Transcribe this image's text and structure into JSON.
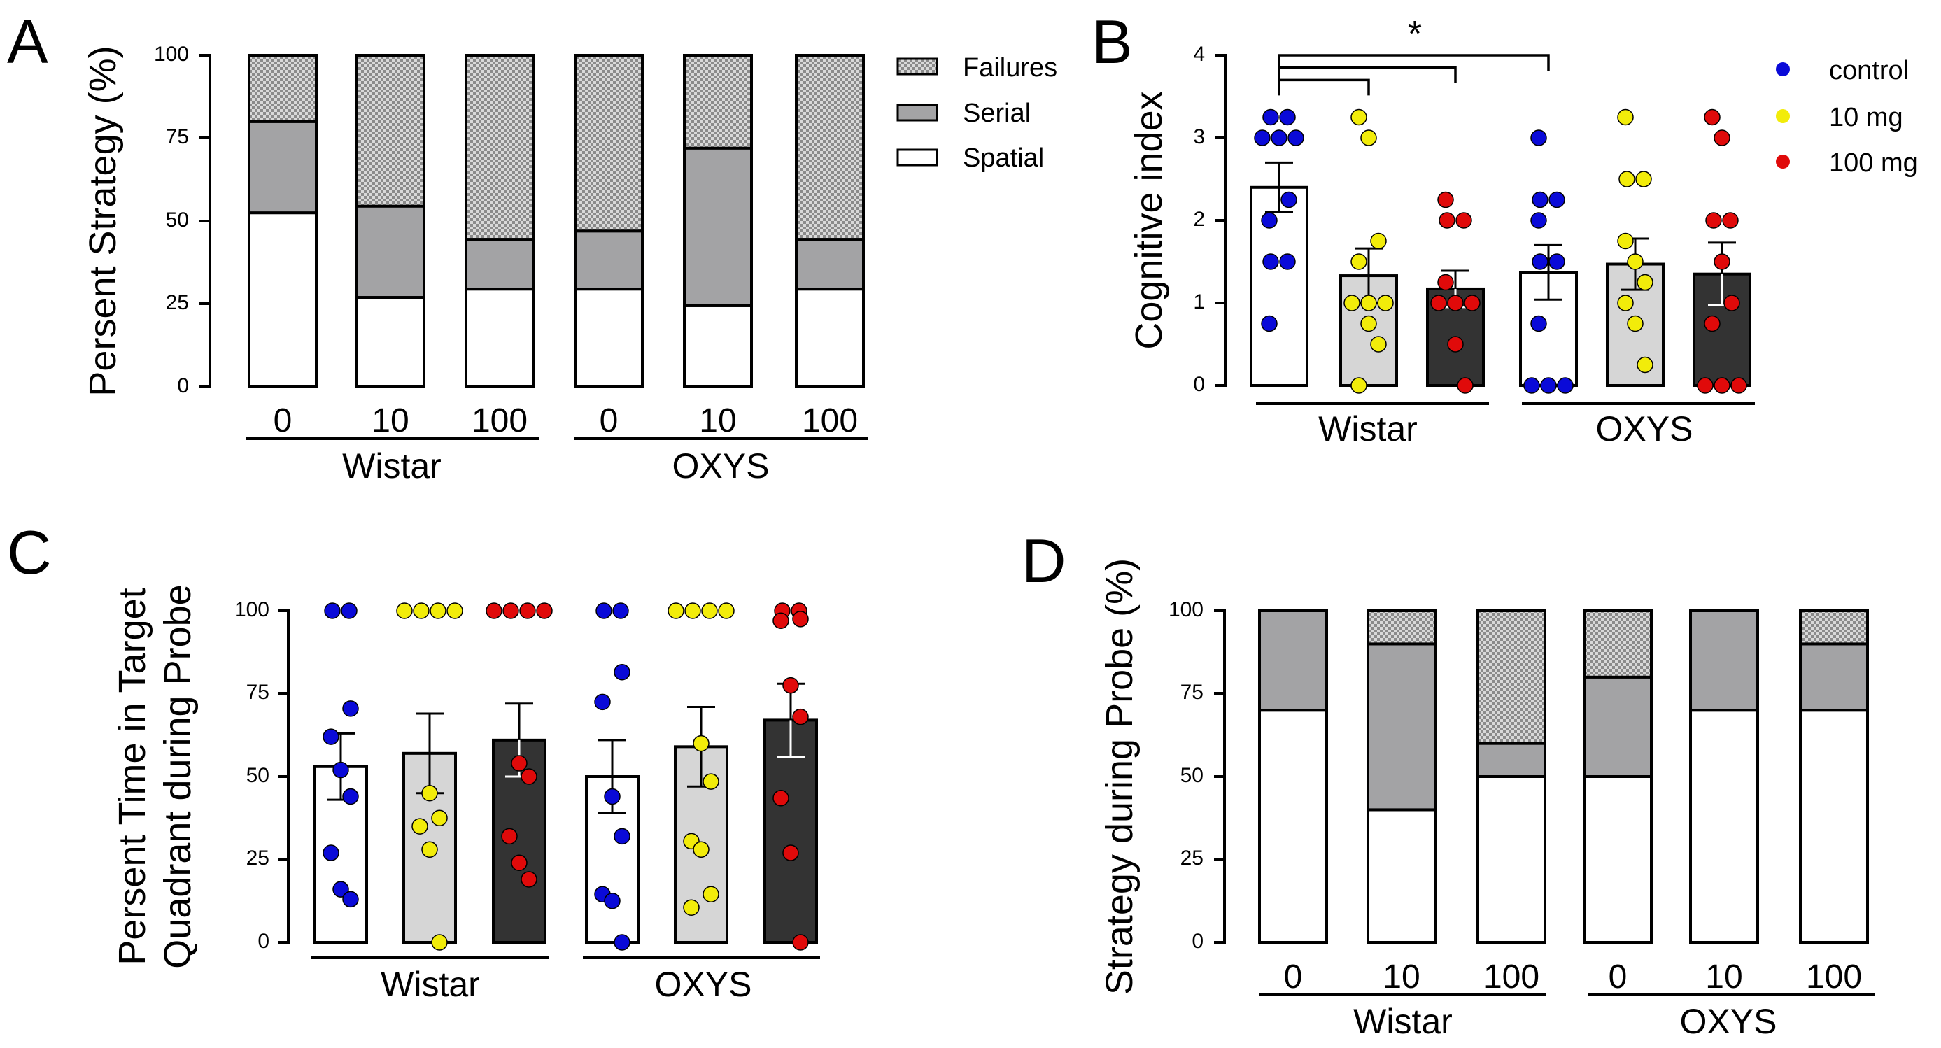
{
  "colors": {
    "failures_fill": "#d4d4d4",
    "serial_fill": "#a3a3a5",
    "spatial_fill": "#ffffff",
    "control": "#0a0ad8",
    "mg10": "#f2ec0a",
    "mg100": "#e00a0a",
    "bar_control": "#ffffff",
    "bar_10": "#d6d6d6",
    "bar_100": "#333333"
  },
  "chart_data": [
    {
      "id": "A",
      "panel": "A",
      "type": "bar",
      "stacked": true,
      "ylabel": "Persent Strategy (%)",
      "ylim": [
        0,
        100
      ],
      "yticks": [
        "0",
        "25",
        "50",
        "75",
        "100"
      ],
      "categories": [
        "0",
        "10",
        "100",
        "0",
        "10",
        "100"
      ],
      "groups": [
        "Wistar",
        "OXYS"
      ],
      "series": [
        {
          "name": "Spatial",
          "values": [
            52.5,
            27,
            29.5,
            29.5,
            24.5,
            29.5
          ]
        },
        {
          "name": "Serial",
          "values": [
            27.5,
            27.5,
            15,
            17.5,
            47.5,
            15
          ]
        },
        {
          "name": "Failures",
          "values": [
            20,
            45.5,
            55.5,
            53,
            28,
            55.5
          ]
        }
      ],
      "legend": [
        "Failures",
        "Serial",
        "Spatial"
      ],
      "legend_position": "right"
    },
    {
      "id": "B",
      "panel": "B",
      "type": "bar",
      "ylabel": "Cognitive index",
      "ylim": [
        0,
        4
      ],
      "yticks": [
        "0",
        "1",
        "2",
        "3",
        "4"
      ],
      "groups": [
        "Wistar",
        "OXYS"
      ],
      "series_names": [
        "control",
        "10 mg",
        "100 mg"
      ],
      "bars": [
        {
          "group": "Wistar",
          "dose": "control",
          "mean": 2.4,
          "sem": 0.3,
          "points": [
            3.25,
            3.25,
            3,
            3,
            3,
            2.25,
            2,
            1.5,
            1.5,
            0.75
          ]
        },
        {
          "group": "Wistar",
          "dose": "10 mg",
          "mean": 1.33,
          "sem": 0.33,
          "points": [
            3.25,
            3,
            1.75,
            1.5,
            1,
            1,
            1,
            0.75,
            0.5,
            0
          ]
        },
        {
          "group": "Wistar",
          "dose": "100 mg",
          "mean": 1.17,
          "sem": 0.22,
          "points": [
            2.25,
            2,
            2,
            1.25,
            1,
            1,
            1,
            0.5,
            0
          ]
        },
        {
          "group": "OXYS",
          "dose": "control",
          "mean": 1.37,
          "sem": 0.33,
          "points": [
            3,
            2.25,
            2.25,
            2,
            1.5,
            1.5,
            0.75,
            0,
            0,
            0
          ]
        },
        {
          "group": "OXYS",
          "dose": "10 mg",
          "mean": 1.47,
          "sem": 0.31,
          "points": [
            3.25,
            2.5,
            2.5,
            1.75,
            1.5,
            1.25,
            1,
            0.75,
            0.25
          ]
        },
        {
          "group": "OXYS",
          "dose": "100 mg",
          "mean": 1.35,
          "sem": 0.38,
          "points": [
            3.25,
            3,
            2,
            2,
            1.5,
            1,
            0.75,
            0,
            0,
            0
          ]
        }
      ],
      "significance": [
        {
          "from": 0,
          "to": 1,
          "y": 3.7
        },
        {
          "from": 0,
          "to": 2,
          "y": 3.85
        },
        {
          "from": 0,
          "to": 3,
          "y": 4.0
        }
      ],
      "significance_label": "*",
      "legend": [
        "control",
        "10 mg",
        "100 mg"
      ],
      "legend_position": "top-right"
    },
    {
      "id": "C",
      "panel": "C",
      "type": "bar",
      "ylabel_line1": "Persent Time in Target",
      "ylabel_line2": "Quadrant during Probe",
      "ylim": [
        0,
        100
      ],
      "yticks": [
        "0",
        "25",
        "50",
        "75",
        "100"
      ],
      "groups": [
        "Wistar",
        "OXYS"
      ],
      "bars": [
        {
          "group": "Wistar",
          "dose": "control",
          "mean": 53,
          "sem": 10,
          "points": [
            100,
            100,
            70.5,
            62,
            52,
            44,
            27,
            16,
            13
          ]
        },
        {
          "group": "Wistar",
          "dose": "10 mg",
          "mean": 57,
          "sem": 12,
          "points": [
            100,
            100,
            100,
            100,
            45,
            37.5,
            35,
            28,
            0
          ]
        },
        {
          "group": "Wistar",
          "dose": "100 mg",
          "mean": 61,
          "sem": 11,
          "points": [
            100,
            100,
            100,
            100,
            54,
            50,
            32,
            24,
            19
          ]
        },
        {
          "group": "OXYS",
          "dose": "control",
          "mean": 50,
          "sem": 11,
          "points": [
            100,
            100,
            81.5,
            72.5,
            44,
            32,
            14.5,
            12.5,
            0
          ]
        },
        {
          "group": "OXYS",
          "dose": "10 mg",
          "mean": 59,
          "sem": 12,
          "points": [
            100,
            100,
            100,
            100,
            60,
            48.5,
            30.5,
            28,
            14.5,
            10.5
          ]
        },
        {
          "group": "OXYS",
          "dose": "100 mg",
          "mean": 67,
          "sem": 11,
          "points": [
            100,
            100,
            97.5,
            97,
            77.5,
            68,
            43.5,
            27,
            0
          ]
        }
      ]
    },
    {
      "id": "D",
      "panel": "D",
      "type": "bar",
      "stacked": true,
      "ylabel": "Strategy during Probe (%)",
      "ylim": [
        0,
        100
      ],
      "yticks": [
        "0",
        "25",
        "50",
        "75",
        "100"
      ],
      "categories": [
        "0",
        "10",
        "100",
        "0",
        "10",
        "100"
      ],
      "groups": [
        "Wistar",
        "OXYS"
      ],
      "series": [
        {
          "name": "Spatial",
          "values": [
            70,
            40,
            50,
            50,
            70,
            70
          ]
        },
        {
          "name": "Serial",
          "values": [
            30,
            50,
            10,
            30,
            30,
            20
          ]
        },
        {
          "name": "Failures",
          "values": [
            0,
            10,
            40,
            20,
            0,
            10
          ]
        }
      ]
    }
  ]
}
